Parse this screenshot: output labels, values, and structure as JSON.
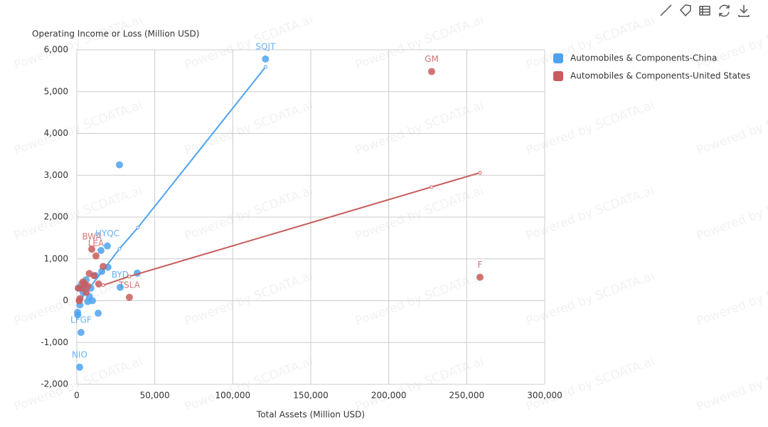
{
  "watermark": "Powered by SCDATA.ai",
  "chart_data": {
    "type": "scatter",
    "x_label": "Total Assets (Million USD)",
    "y_label": "Operating Income or Loss (Million USD)",
    "xlim": [
      0,
      300000
    ],
    "xticks": [
      0,
      {
        "value": 50000,
        "label": "50,000"
      },
      {
        "value": 100000,
        "label": "100,000"
      },
      {
        "value": 150000,
        "label": "150,000"
      },
      {
        "value": 200000,
        "label": "200,000"
      },
      {
        "value": 250000,
        "label": "250,000"
      },
      {
        "value": 300000,
        "label": "300,000"
      }
    ],
    "ylim": [
      -2000,
      6000
    ],
    "yticks": [
      {
        "value": -2000,
        "label": "-2,000"
      },
      {
        "value": -1000,
        "label": "-1,000"
      },
      0,
      {
        "value": 1000,
        "label": "1,000"
      },
      {
        "value": 2000,
        "label": "2,000"
      },
      {
        "value": 3000,
        "label": "3,000"
      },
      {
        "value": 4000,
        "label": "4,000"
      },
      {
        "value": 5000,
        "label": "5,000"
      },
      {
        "value": 6000,
        "label": "6,000"
      }
    ],
    "grid": true,
    "legend": "right",
    "series": [
      {
        "name": "Automobiles & Components-China",
        "color": "#4ea3f1",
        "x": [
          121000,
          27350,
          19600,
          20000,
          38750,
          27800,
          13700,
          2700,
          1800,
          500,
          600,
          15500,
          16000,
          9000,
          6000,
          4000,
          3000,
          8000,
          10000,
          2000,
          1000,
          12000,
          5000,
          7000
        ],
        "values": [
          5780,
          3250,
          1310,
          800,
          660,
          320,
          -300,
          -760,
          -1590,
          -280,
          -340,
          1200,
          700,
          300,
          500,
          200,
          400,
          100,
          0,
          -100,
          300,
          600,
          350,
          -20
        ],
        "labels": [
          "SQJT",
          null,
          "HYQC",
          null,
          null,
          "BYD",
          null,
          "LFGF",
          "NIO",
          null,
          null,
          null,
          null,
          null,
          null,
          null,
          null,
          null,
          null,
          null,
          null,
          null,
          null,
          null
        ],
        "trend": {
          "x": [
            1500,
            27350,
            39200,
            121000
          ],
          "values": [
            -20,
            1240,
            1750,
            5590
          ]
        }
      },
      {
        "name": "Automobiles & Components-United States",
        "color": "#c95c5c",
        "x": [
          227500,
          258500,
          33700,
          9600,
          12300,
          16900,
          11000,
          8000,
          5000,
          3000,
          2000,
          1500,
          7000,
          4000,
          1000,
          6000,
          14000
        ],
        "values": [
          5480,
          560,
          80,
          1230,
          1070,
          820,
          600,
          650,
          400,
          300,
          50,
          0,
          350,
          450,
          300,
          200,
          400
        ],
        "labels": [
          "GM",
          "F",
          "TSLA",
          "BWA",
          "LEA",
          null,
          null,
          null,
          null,
          null,
          null,
          null,
          null,
          null,
          null,
          null,
          null
        ],
        "trend": {
          "x": [
            16900,
            33700,
            227500,
            258500
          ],
          "values": [
            370,
            580,
            2720,
            3060
          ]
        }
      }
    ]
  }
}
